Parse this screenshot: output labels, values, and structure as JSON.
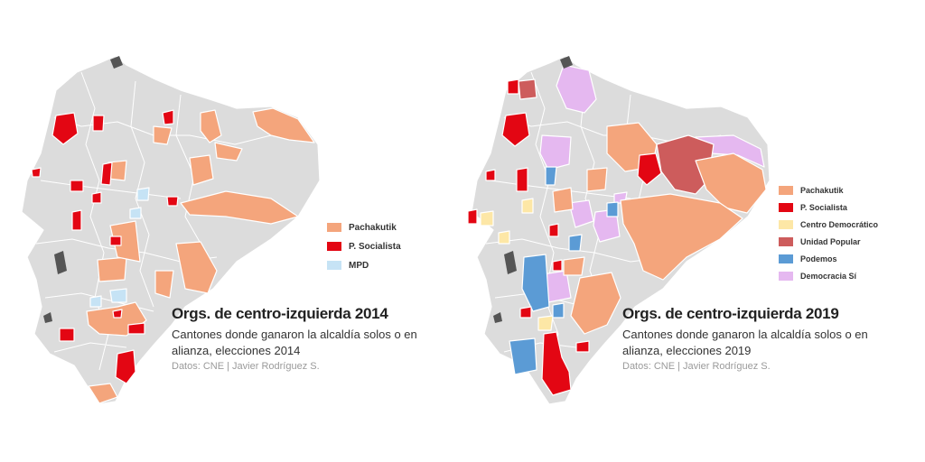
{
  "maps": [
    {
      "title": "Orgs. de centro-izquierda 2014",
      "subtitle": "Cantones donde ganaron la alcaldía solos o en alianza, elecciones 2014",
      "credit": "Datos: CNE | Javier Rodríguez S.",
      "legend": [
        {
          "label": "Pachakutik",
          "color": "#f4a57c"
        },
        {
          "label": "P. Socialista",
          "color": "#e30613"
        },
        {
          "label": "MPD",
          "color": "#c6e3f5"
        }
      ]
    },
    {
      "title": "Orgs. de centro-izquierda 2019",
      "subtitle": "Cantones donde ganaron la alcaldía solos o en alianza, elecciones 2019",
      "credit": "Datos: CNE | Javier Rodríguez S.",
      "legend": [
        {
          "label": "Pachakutik",
          "color": "#f4a57c"
        },
        {
          "label": "P. Socialista",
          "color": "#e30613"
        },
        {
          "label": "Centro Democrático",
          "color": "#fde7a6"
        },
        {
          "label": "Unidad Popular",
          "color": "#cd5c5c"
        },
        {
          "label": "Podemos",
          "color": "#5b9bd5"
        },
        {
          "label": "Democracia Sí",
          "color": "#e5b8f0"
        }
      ]
    }
  ],
  "base_color": "#dcdcdc",
  "border_color": "#ffffff"
}
